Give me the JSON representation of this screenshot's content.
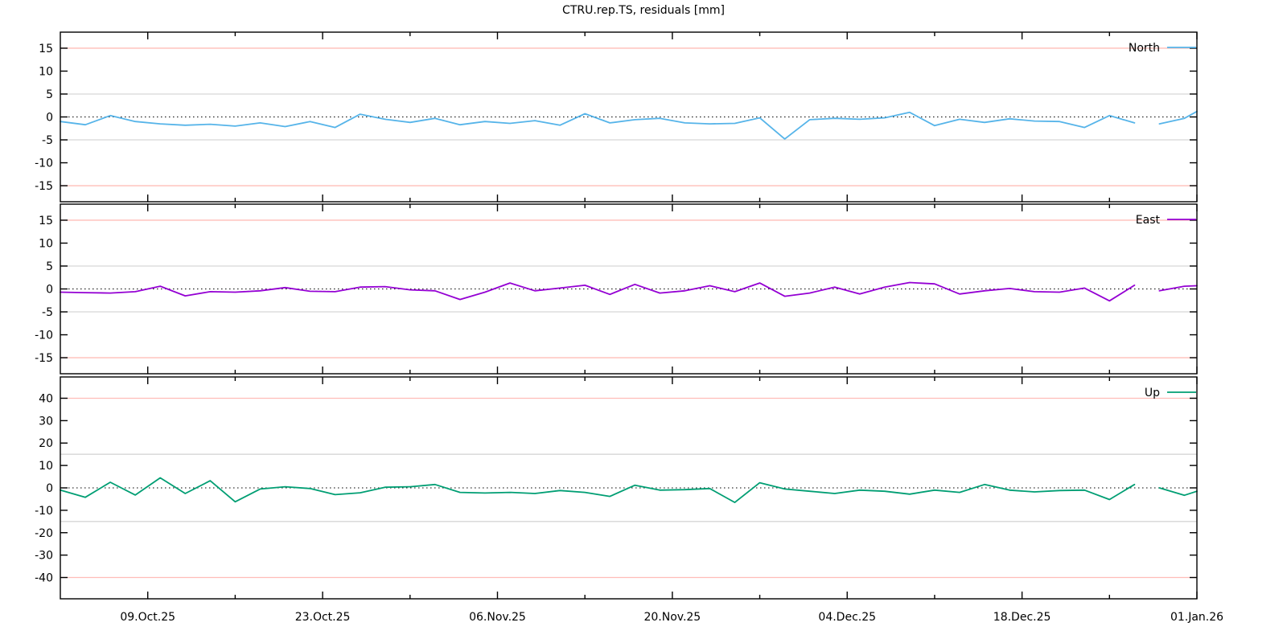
{
  "title": "CTRU.rep.TS, residuals [mm]",
  "chart_data": {
    "type": "line",
    "title": "CTRU.rep.TS, residuals [mm]",
    "x_start": "2025-10-02",
    "x_end": "2026-01-01",
    "x_major_ticks": [
      {
        "date": "2025-10-09",
        "label": "09.Oct.25"
      },
      {
        "date": "2025-10-23",
        "label": "23.Oct.25"
      },
      {
        "date": "2025-11-06",
        "label": "06.Nov.25"
      },
      {
        "date": "2025-11-20",
        "label": "20.Nov.25"
      },
      {
        "date": "2025-12-04",
        "label": "04.Dec.25"
      },
      {
        "date": "2025-12-18",
        "label": "18.Dec.25"
      },
      {
        "date": "2026-01-01",
        "label": "01.Jan.26"
      }
    ],
    "x_minor_ticks": [
      "2025-10-16",
      "2025-10-30",
      "2025-11-13",
      "2025-11-27",
      "2025-12-11",
      "2025-12-25"
    ],
    "grid": {
      "outer_line_color": "#ffbdb8",
      "inner_line_color": "#d6d6d6",
      "zero_line_color": "#000000",
      "zero_line_style": "dotted"
    },
    "dates": [
      "2025-10-02",
      "2025-10-04",
      "2025-10-06",
      "2025-10-08",
      "2025-10-10",
      "2025-10-12",
      "2025-10-14",
      "2025-10-16",
      "2025-10-18",
      "2025-10-20",
      "2025-10-22",
      "2025-10-24",
      "2025-10-26",
      "2025-10-28",
      "2025-10-30",
      "2025-11-01",
      "2025-11-03",
      "2025-11-05",
      "2025-11-07",
      "2025-11-09",
      "2025-11-11",
      "2025-11-13",
      "2025-11-15",
      "2025-11-17",
      "2025-11-19",
      "2025-11-21",
      "2025-11-23",
      "2025-11-25",
      "2025-11-27",
      "2025-11-29",
      "2025-12-01",
      "2025-12-03",
      "2025-12-05",
      "2025-12-07",
      "2025-12-09",
      "2025-12-11",
      "2025-12-13",
      "2025-12-15",
      "2025-12-17",
      "2025-12-19",
      "2025-12-21",
      "2025-12-23",
      "2025-12-25",
      "2025-12-27",
      "2025-12-28",
      "2025-12-29",
      "2025-12-31",
      "2026-01-01"
    ],
    "panels": [
      {
        "name": "North",
        "legend": "North",
        "color": "#56b4e9",
        "ylim": [
          -18.5,
          18.5
        ],
        "yticks": [
          15,
          10,
          5,
          0,
          -5,
          -10,
          -15
        ],
        "outer_line": 15,
        "inner_line": 5,
        "values": [
          -1.0,
          -1.7,
          0.3,
          -1.0,
          -1.5,
          -1.8,
          -1.6,
          -2.0,
          -1.3,
          -2.1,
          -1.0,
          -2.3,
          0.6,
          -0.5,
          -1.2,
          -0.3,
          -1.7,
          -1.0,
          -1.4,
          -0.8,
          -1.8,
          0.7,
          -1.3,
          -0.6,
          -0.3,
          -1.3,
          -1.5,
          -1.4,
          -0.2,
          -4.8,
          -0.6,
          -0.3,
          -0.5,
          -0.2,
          1.0,
          -1.9,
          -0.5,
          -1.2,
          -0.4,
          -0.9,
          -1.0,
          -2.3,
          0.3,
          -1.3,
          null,
          -1.5,
          -0.3,
          1.2
        ]
      },
      {
        "name": "East",
        "legend": "East",
        "color": "#9400d3",
        "ylim": [
          -18.5,
          18.5
        ],
        "yticks": [
          15,
          10,
          5,
          0,
          -5,
          -10,
          -15
        ],
        "outer_line": 15,
        "inner_line": 5,
        "values": [
          -0.7,
          -0.8,
          -0.9,
          -0.6,
          0.6,
          -1.5,
          -0.6,
          -0.7,
          -0.4,
          0.3,
          -0.5,
          -0.6,
          0.4,
          0.5,
          -0.2,
          -0.4,
          -2.3,
          -0.7,
          1.3,
          -0.4,
          0.2,
          0.8,
          -1.2,
          1.0,
          -0.9,
          -0.4,
          0.7,
          -0.6,
          1.3,
          -1.6,
          -0.9,
          0.4,
          -1.1,
          0.4,
          1.4,
          1.1,
          -1.1,
          -0.4,
          0.1,
          -0.6,
          -0.7,
          0.2,
          -2.6,
          0.8,
          null,
          -0.4,
          0.6,
          0.7
        ]
      },
      {
        "name": "Up",
        "legend": "Up",
        "color": "#009e73",
        "ylim": [
          -49.5,
          49.5
        ],
        "yticks": [
          40,
          30,
          20,
          10,
          0,
          -10,
          -20,
          -30,
          -40
        ],
        "outer_line": 40,
        "inner_line": 15,
        "values": [
          -1.0,
          -4.2,
          2.5,
          -3.2,
          4.5,
          -2.5,
          3.2,
          -6.2,
          -0.5,
          0.5,
          -0.3,
          -3.0,
          -2.2,
          0.3,
          0.5,
          1.5,
          -2.0,
          -2.3,
          -2.0,
          -2.5,
          -1.2,
          -2.0,
          -3.8,
          1.2,
          -1.0,
          -0.8,
          -0.3,
          -6.5,
          2.3,
          -0.5,
          -1.5,
          -2.5,
          -1.0,
          -1.5,
          -2.8,
          -1.0,
          -2.0,
          1.5,
          -1.0,
          -1.8,
          -1.2,
          -1.0,
          -5.2,
          1.5,
          null,
          0.0,
          -3.3,
          -1.5
        ]
      }
    ]
  }
}
